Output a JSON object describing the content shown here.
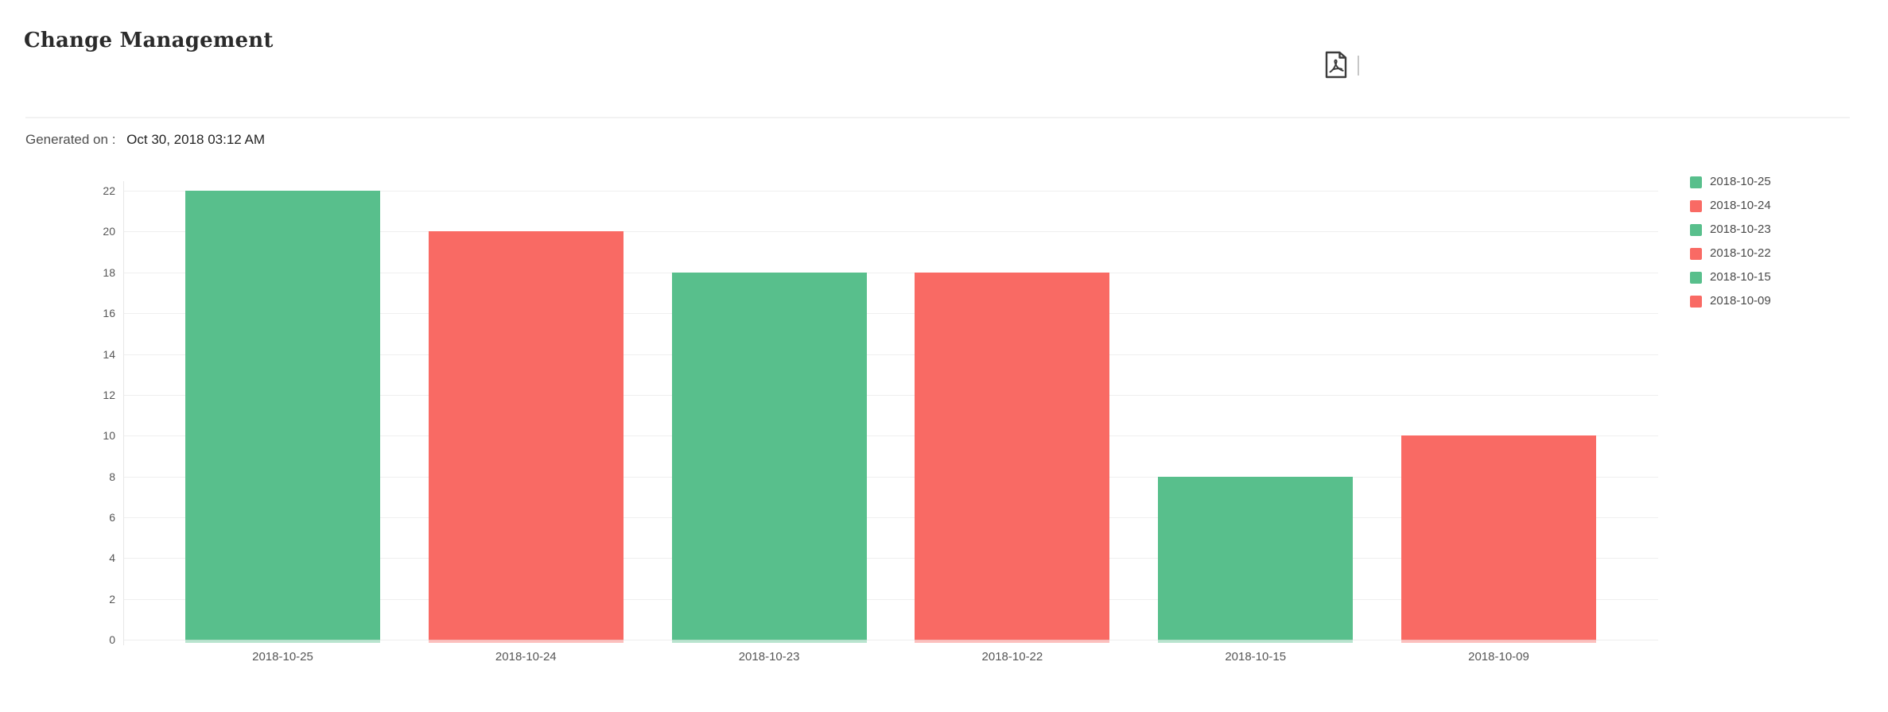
{
  "header": {
    "title": "Change Management",
    "pdf_icon": "pdf-export-icon"
  },
  "meta": {
    "generated_label": "Generated on :",
    "generated_value": "Oct 30, 2018 03:12 AM"
  },
  "colors": {
    "bar_green": "#58bf8c",
    "bar_red": "#f96a64",
    "grid_line": "#efefef",
    "axis_line": "#e7e7e7",
    "tick_text": "#565656",
    "legend_text": "#4a4a4a",
    "divider": "#f2f2f2",
    "icon": "#3c3c3c"
  },
  "chart_data": {
    "type": "bar",
    "title": "Change Management",
    "categories": [
      "2018-10-25",
      "2018-10-24",
      "2018-10-23",
      "2018-10-22",
      "2018-10-15",
      "2018-10-09"
    ],
    "values": [
      22,
      20,
      18,
      18,
      8,
      10
    ],
    "bar_colors": [
      "#58bf8c",
      "#f96a64",
      "#58bf8c",
      "#f96a64",
      "#58bf8c",
      "#f96a64"
    ],
    "xlabel": "",
    "ylabel": "",
    "ylim": [
      0,
      22
    ],
    "ytick_step": 2,
    "yticks": [
      0,
      2,
      4,
      6,
      8,
      10,
      12,
      14,
      16,
      18,
      20,
      22
    ],
    "grid": "horizontal",
    "legend_position": "top-right",
    "legend": [
      {
        "label": "2018-10-25",
        "color": "#58bf8c"
      },
      {
        "label": "2018-10-24",
        "color": "#f96a64"
      },
      {
        "label": "2018-10-23",
        "color": "#58bf8c"
      },
      {
        "label": "2018-10-22",
        "color": "#f96a64"
      },
      {
        "label": "2018-10-15",
        "color": "#58bf8c"
      },
      {
        "label": "2018-10-09",
        "color": "#f96a64"
      }
    ]
  }
}
